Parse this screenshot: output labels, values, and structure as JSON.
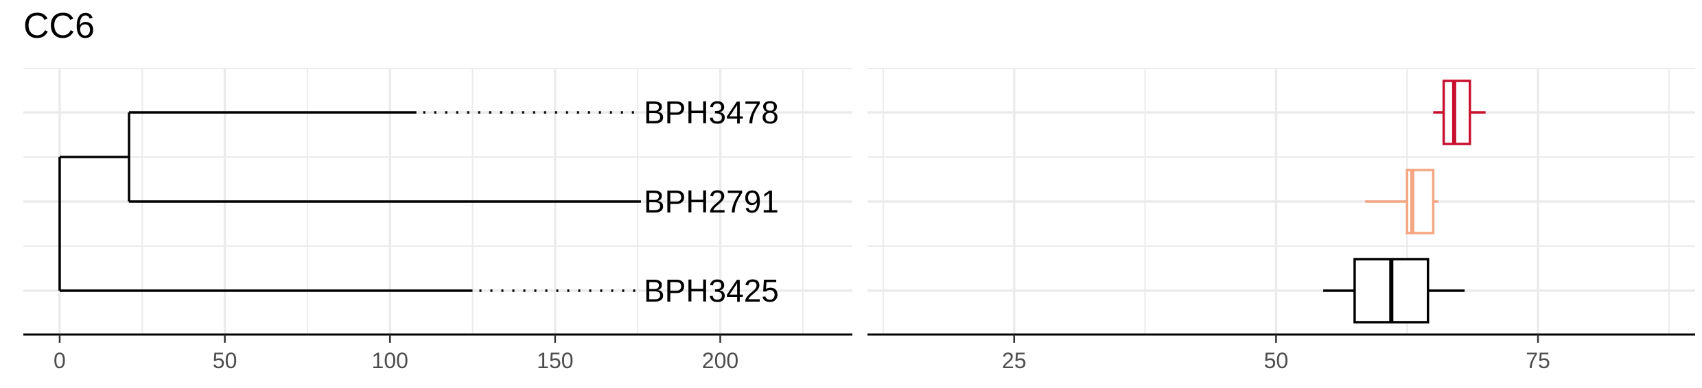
{
  "title": "CC6",
  "colors": {
    "grid": "#ebebeb",
    "axis": "#000000",
    "tree": "#000000",
    "tick_text": "#4d4d4d"
  },
  "chart_data": [
    {
      "type": "dendrogram",
      "xlim": [
        -11,
        240
      ],
      "x_ticks": [
        0,
        50,
        100,
        150,
        200
      ],
      "tip_label_x": 176,
      "tips": [
        {
          "label": "BPH3478",
          "branch_end": 108
        },
        {
          "label": "BPH2791",
          "branch_end": 176
        },
        {
          "label": "BPH3425",
          "branch_end": 125
        }
      ],
      "nodes": {
        "root_x": 0,
        "inner_x": 21
      },
      "grid": true
    },
    {
      "type": "boxplot",
      "xlim": [
        11,
        90
      ],
      "x_ticks": [
        25,
        50,
        75
      ],
      "grid": true,
      "series": [
        {
          "group": "BPH3478",
          "color": "#c8102e",
          "whisker_low": 65,
          "q1": 66,
          "median": 67,
          "q3": 68.5,
          "whisker_high": 70
        },
        {
          "group": "BPH2791",
          "color": "#f4a582",
          "whisker_low": 58.5,
          "q1": 62.5,
          "median": 63,
          "q3": 65,
          "whisker_high": 65.5
        },
        {
          "group": "BPH3425",
          "color": "#000000",
          "whisker_low": 54.5,
          "q1": 57.5,
          "median": 61,
          "q3": 64.5,
          "whisker_high": 68
        }
      ]
    }
  ]
}
